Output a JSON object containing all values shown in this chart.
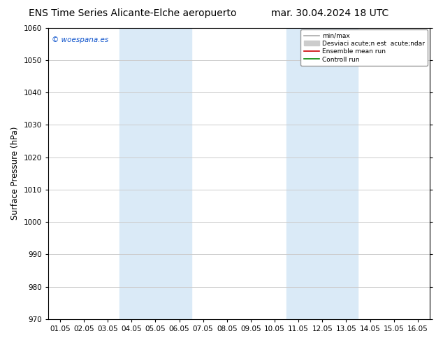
{
  "title_left": "ENS Time Series Alicante-Elche aeropuerto",
  "title_right": "mar. 30.04.2024 18 UTC",
  "ylabel": "Surface Pressure (hPa)",
  "ylim": [
    970,
    1060
  ],
  "yticks": [
    970,
    980,
    990,
    1000,
    1010,
    1020,
    1030,
    1040,
    1050,
    1060
  ],
  "xtick_labels": [
    "01.05",
    "02.05",
    "03.05",
    "04.05",
    "05.05",
    "06.05",
    "07.05",
    "08.05",
    "09.05",
    "10.05",
    "11.05",
    "12.05",
    "13.05",
    "14.05",
    "15.05",
    "16.05"
  ],
  "shaded_bands": [
    {
      "xmin": 3,
      "xmax": 5,
      "color": "#daeaf7"
    },
    {
      "xmin": 10,
      "xmax": 12,
      "color": "#daeaf7"
    }
  ],
  "watermark": "© woespana.es",
  "watermark_color": "#1155cc",
  "bg_color": "#ffffff",
  "plot_bg_color": "#ffffff",
  "grid_color": "#cccccc",
  "title_fontsize": 10,
  "tick_fontsize": 7.5,
  "ylabel_fontsize": 8.5,
  "legend_label_minmax": "min/max",
  "legend_label_std": "Desviaci acute;n est  acute;ndar",
  "legend_label_ensemble": "Ensemble mean run",
  "legend_label_control": "Controll run",
  "color_minmax": "#aaaaaa",
  "color_std": "#cccccc",
  "color_ensemble": "#cc0000",
  "color_control": "#008800"
}
